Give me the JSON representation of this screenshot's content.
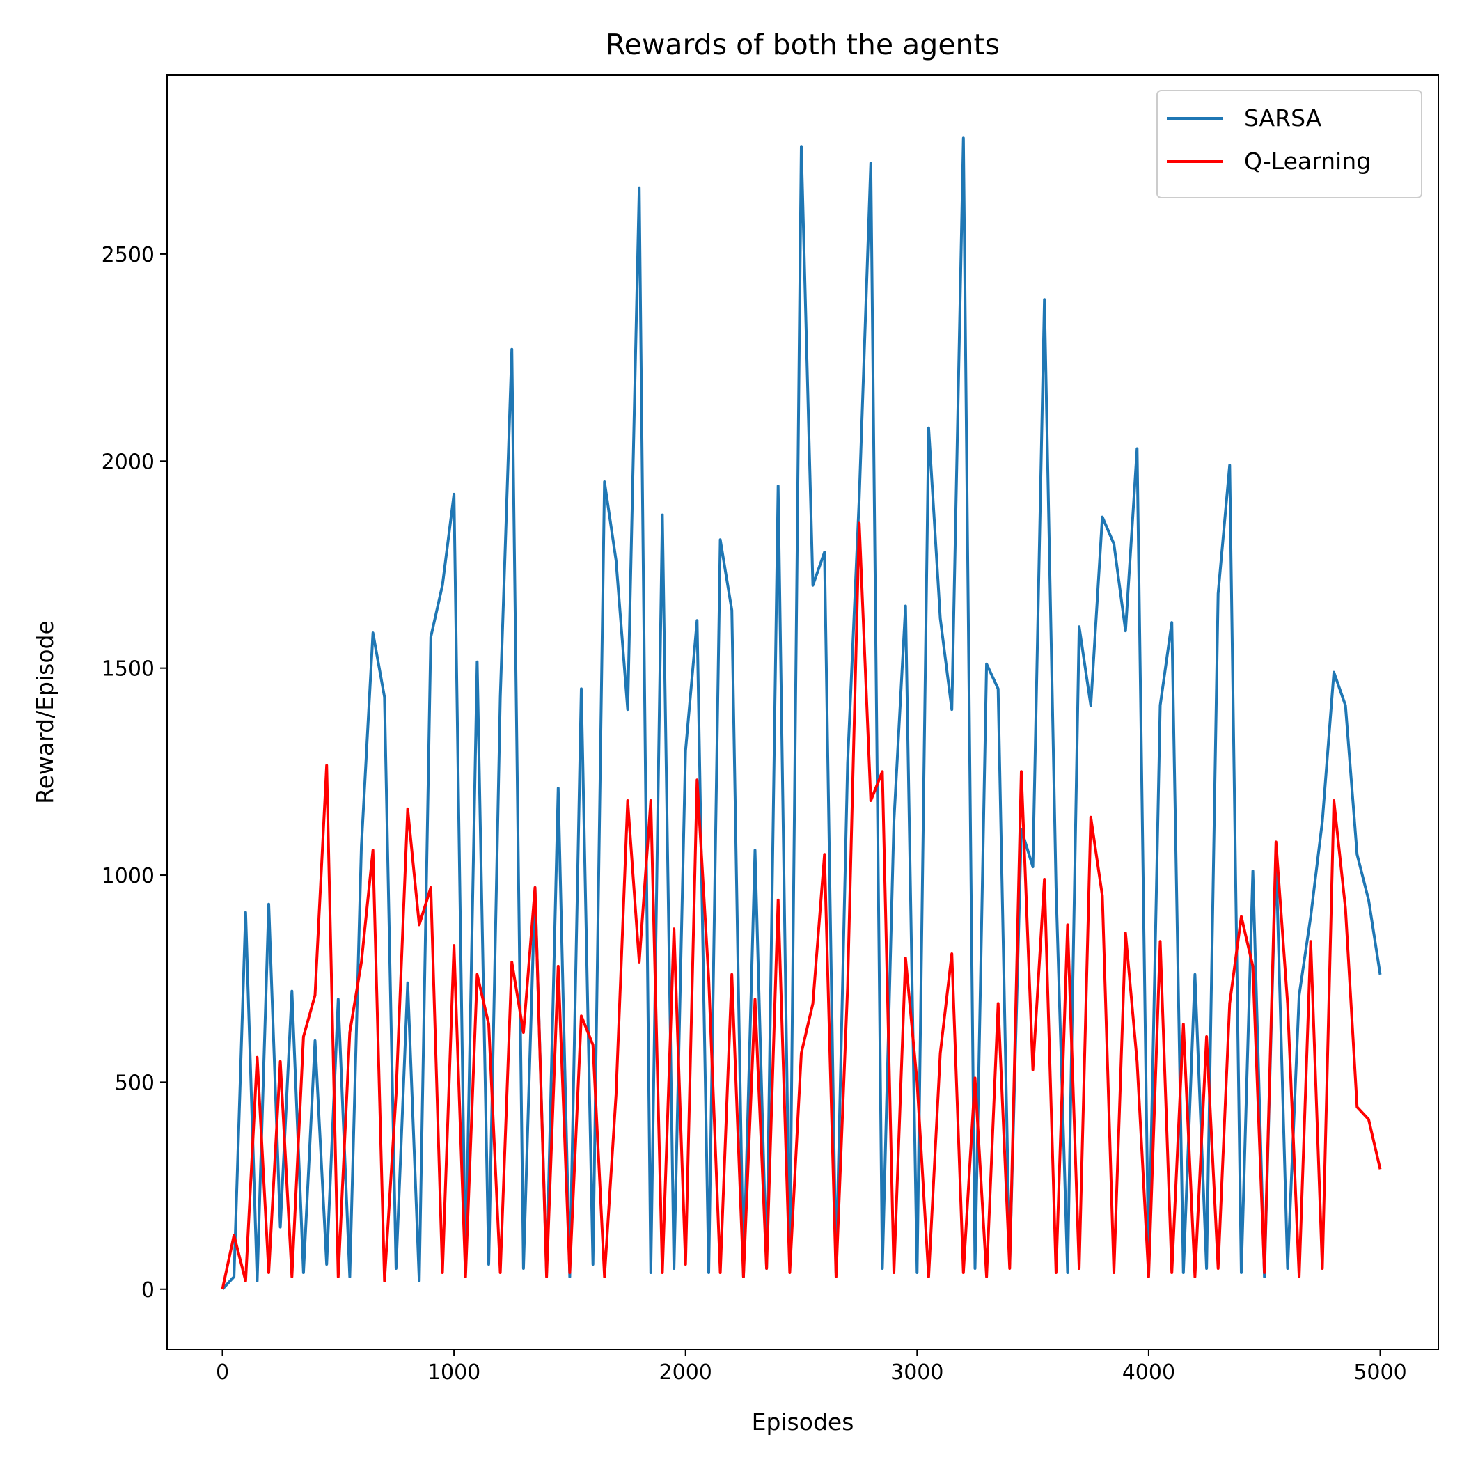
{
  "chart_data": {
    "type": "line",
    "title": "Rewards of both the agents",
    "x_label": "Episodes",
    "y_label": "Reward/Episode",
    "x": [
      0,
      50,
      100,
      150,
      200,
      250,
      300,
      350,
      400,
      450,
      500,
      550,
      600,
      650,
      700,
      750,
      800,
      850,
      900,
      950,
      1000,
      1050,
      1100,
      1150,
      1200,
      1250,
      1300,
      1350,
      1400,
      1450,
      1500,
      1550,
      1600,
      1650,
      1700,
      1750,
      1800,
      1850,
      1900,
      1950,
      2000,
      2050,
      2100,
      2150,
      2200,
      2250,
      2300,
      2350,
      2400,
      2450,
      2500,
      2550,
      2600,
      2650,
      2700,
      2750,
      2800,
      2850,
      2900,
      2950,
      3000,
      3050,
      3100,
      3150,
      3200,
      3250,
      3300,
      3350,
      3400,
      3450,
      3500,
      3550,
      3600,
      3650,
      3700,
      3750,
      3800,
      3850,
      3900,
      3950,
      4000,
      4050,
      4100,
      4150,
      4200,
      4250,
      4300,
      4350,
      4400,
      4450,
      4500,
      4550,
      4600,
      4650,
      4700,
      4750,
      4800,
      4850,
      4900,
      4950,
      5000
    ],
    "series": [
      {
        "name": "SARSA",
        "color": "#1f77b4",
        "values": [
          0,
          30,
          910,
          20,
          930,
          150,
          720,
          40,
          600,
          60,
          700,
          30,
          1070,
          1585,
          1430,
          50,
          740,
          20,
          1575,
          1700,
          1920,
          40,
          1515,
          60,
          1430,
          2270,
          50,
          970,
          40,
          1210,
          30,
          1450,
          60,
          1950,
          1760,
          1400,
          2660,
          40,
          1870,
          50,
          1300,
          1615,
          40,
          1810,
          1640,
          30,
          1060,
          50,
          1940,
          60,
          2760,
          1700,
          1780,
          40,
          1270,
          1910,
          2720,
          50,
          1130,
          1650,
          40,
          2080,
          1620,
          1400,
          2780,
          50,
          1510,
          1450,
          60,
          1110,
          1020,
          2390,
          970,
          40,
          1600,
          1410,
          1865,
          1800,
          1590,
          2030,
          50,
          1410,
          1610,
          40,
          760,
          50,
          1680,
          1990,
          40,
          1010,
          30,
          1050,
          50,
          710,
          900,
          1130,
          1490,
          1410,
          1050,
          940,
          760
        ]
      },
      {
        "name": "Q-Learning",
        "color": "#ff0000",
        "values": [
          0,
          130,
          20,
          560,
          40,
          550,
          30,
          610,
          710,
          1265,
          30,
          620,
          790,
          1060,
          20,
          470,
          1160,
          880,
          970,
          40,
          830,
          30,
          760,
          640,
          40,
          790,
          620,
          970,
          30,
          780,
          40,
          660,
          590,
          30,
          470,
          1180,
          790,
          1180,
          40,
          870,
          60,
          1230,
          750,
          40,
          760,
          30,
          700,
          50,
          940,
          40,
          570,
          690,
          1050,
          30,
          730,
          1850,
          1180,
          1250,
          40,
          800,
          500,
          30,
          570,
          810,
          40,
          510,
          30,
          690,
          50,
          1250,
          530,
          990,
          40,
          880,
          50,
          1140,
          950,
          40,
          860,
          550,
          30,
          840,
          40,
          640,
          30,
          610,
          50,
          690,
          900,
          780,
          40,
          1080,
          690,
          30,
          840,
          50,
          1180,
          920,
          440,
          410,
          290
        ]
      }
    ],
    "xlim": [
      -239,
      5251
    ],
    "ylim": [
      -145,
      2932
    ],
    "xticks": [
      0,
      1000,
      2000,
      3000,
      4000,
      5000
    ],
    "yticks": [
      0,
      500,
      1000,
      1500,
      2000,
      2500
    ],
    "legend": "upper right"
  }
}
